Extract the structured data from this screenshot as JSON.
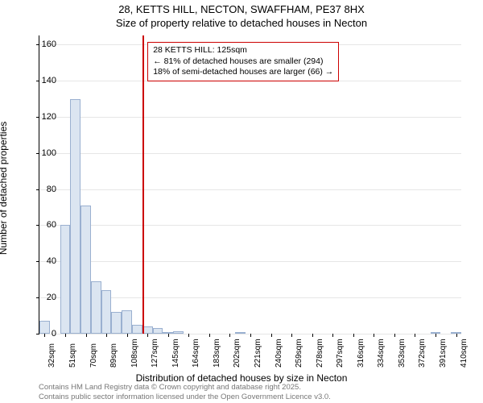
{
  "title_line1": "28, KETTS HILL, NECTON, SWAFFHAM, PE37 8HX",
  "title_line2": "Size of property relative to detached houses in Necton",
  "yaxis": {
    "label": "Number of detached properties",
    "min": 0,
    "max": 165,
    "ticks": [
      0,
      20,
      40,
      60,
      80,
      100,
      120,
      140,
      160
    ]
  },
  "xaxis": {
    "label": "Distribution of detached houses by size in Necton",
    "tick_labels": [
      "32sqm",
      "51sqm",
      "70sqm",
      "89sqm",
      "108sqm",
      "127sqm",
      "145sqm",
      "164sqm",
      "183sqm",
      "202sqm",
      "221sqm",
      "240sqm",
      "259sqm",
      "278sqm",
      "297sqm",
      "316sqm",
      "334sqm",
      "353sqm",
      "372sqm",
      "391sqm",
      "410sqm"
    ]
  },
  "bars": {
    "values": [
      7,
      0,
      60,
      130,
      71,
      29,
      24,
      12,
      13,
      5,
      4,
      3,
      1,
      1.5,
      0,
      0,
      0,
      0,
      0,
      0.5,
      0,
      0,
      0,
      0,
      0,
      0,
      0,
      0,
      0,
      0,
      0,
      0,
      0,
      0,
      0,
      0,
      0,
      0,
      0.5,
      0,
      0.5
    ],
    "fill": "#dbe5f1",
    "border": "#9ab0d0",
    "count": 41
  },
  "marker_line": {
    "position_index": 10,
    "color": "#cc0000"
  },
  "infobox": {
    "line1": "28 KETTS HILL: 125sqm",
    "line2": "← 81% of detached houses are smaller (294)",
    "line3": "18% of semi-detached houses are larger (66) →",
    "border": "#cc0000",
    "position_index": 10.5
  },
  "footer": {
    "line1": "Contains HM Land Registry data © Crown copyright and database right 2025.",
    "line2": "Contains public sector information licensed under the Open Government Licence v3.0.",
    "color": "#777777"
  },
  "style": {
    "grid_color": "#e6e6e6",
    "bg": "#ffffff",
    "axis_color": "#000000"
  }
}
